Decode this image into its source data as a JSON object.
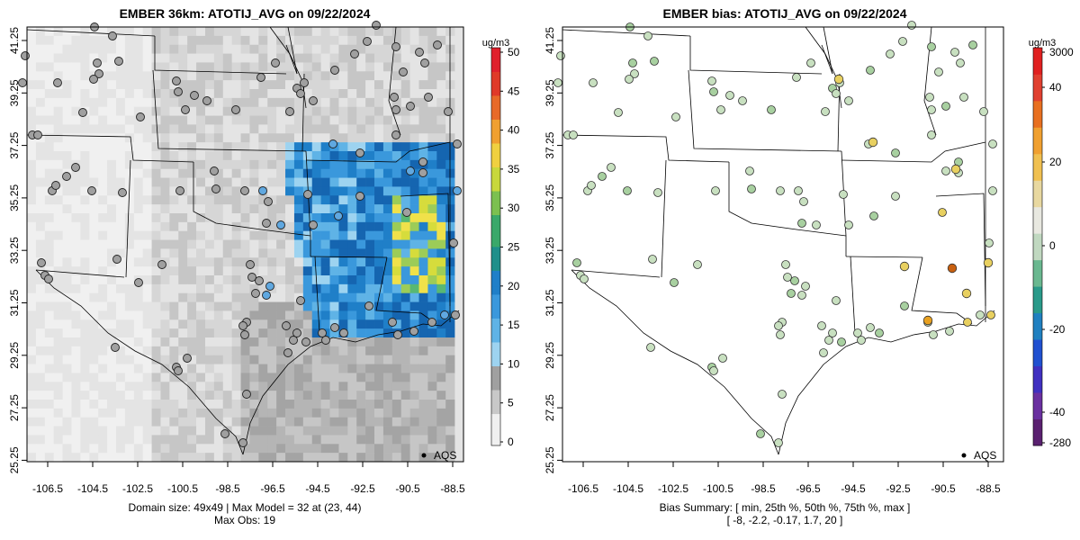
{
  "left_panel": {
    "title": "EMBER 36km: ATOTIJ_AVG on 09/22/2024",
    "x_ticks": [
      "-106.5",
      "-104.5",
      "-102.5",
      "-100.5",
      "-98.5",
      "-96.5",
      "-94.5",
      "-92.5",
      "-90.5",
      "-88.5"
    ],
    "y_ticks": [
      "41.25",
      "39.25",
      "37.25",
      "35.25",
      "33.25",
      "31.25",
      "29.25",
      "27.25",
      "25.25"
    ],
    "legend_label": "AQS",
    "footer_line1": "Domain size: 49x49 | Max Model = 32 at (23, 44)",
    "footer_line2": "Max Obs: 19",
    "colorbar": {
      "unit": "ug/m3",
      "labels": [
        "50",
        "45",
        "40",
        "35",
        "30",
        "25",
        "20",
        "15",
        "10",
        "5",
        "0"
      ],
      "range": [
        0,
        50
      ]
    }
  },
  "right_panel": {
    "title": "EMBER bias: ATOTIJ_AVG on 09/22/2024",
    "x_ticks": [
      "-106.5",
      "-104.5",
      "-102.5",
      "-100.5",
      "-98.5",
      "-96.5",
      "-94.5",
      "-92.5",
      "-90.5",
      "-88.5"
    ],
    "y_ticks": [
      "41.25",
      "39.25",
      "37.25",
      "35.25",
      "33.25",
      "31.25",
      "29.25",
      "27.25",
      "25.25"
    ],
    "legend_label": "AQS",
    "footer_line1": "Bias Summary: [ min, 25th %, 50th %, 75th %, max ]",
    "footer_line2": "[ -8,   -2.2,   -0.17,   1.7,   20 ]",
    "colorbar": {
      "unit": "ug/m3",
      "labels": [
        "3000",
        "40",
        "20",
        "0",
        "-20",
        "-40",
        "-280"
      ]
    }
  },
  "colors": {
    "gray_ramp": [
      "#f0f0f0",
      "#e4e4e4",
      "#d6d6d6",
      "#c6c6c6",
      "#b5b5b5",
      "#a4a4a4"
    ],
    "blue_ramp": [
      "#9dd3f0",
      "#5fb3e6",
      "#3a98dc",
      "#1f7fc8",
      "#1565b0"
    ],
    "green_yellow": [
      "#2c9a78",
      "#58b873",
      "#9ccc58",
      "#d6dc3c",
      "#f0e14a"
    ],
    "site_gray": "#a0a0a0",
    "site_blue": "#60a8e0",
    "bias_light_green": "#c8e0c0",
    "bias_green": "#a8d0a0",
    "bias_yellow": "#e8d060",
    "bias_orange": "#e8a020",
    "bias_dark_orange": "#c86010"
  },
  "chart_data": [
    {
      "type": "heatmap",
      "title": "EMBER 36km: ATOTIJ_AVG on 09/22/2024",
      "x_range": [
        -107.5,
        -88.0
      ],
      "y_range": [
        25.25,
        41.75
      ],
      "unit": "ug/m3",
      "value_range": [
        0,
        50
      ],
      "max_model": 32,
      "max_obs": 19,
      "grid": "49x49"
    },
    {
      "type": "scatter",
      "title": "EMBER bias: ATOTIJ_AVG on 09/22/2024",
      "x_range": [
        -107.5,
        -88.0
      ],
      "y_range": [
        25.25,
        41.75
      ],
      "unit": "ug/m3",
      "bias_summary": {
        "min": -8,
        "p25": -2.2,
        "p50": -0.17,
        "p75": 1.7,
        "max": 20
      }
    }
  ]
}
